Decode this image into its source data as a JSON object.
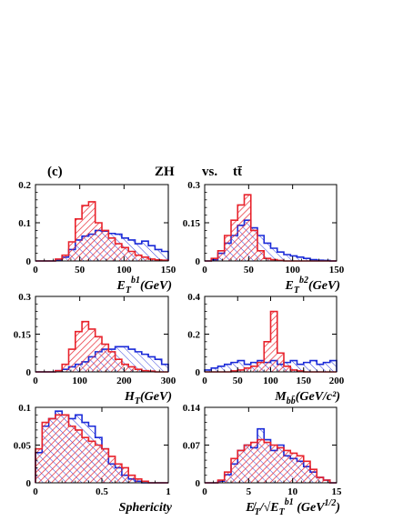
{
  "header": {
    "tag": "(c)",
    "left": "ZH",
    "vs": "vs.",
    "right": "tt̄"
  },
  "colors": {
    "zh": "#e8222b",
    "tt": "#1a2ad8",
    "frame": "#000000"
  },
  "chart_data": [
    {
      "type": "bar",
      "xlabel_main": "E",
      "xlabel_sub": "T",
      "xlabel_sup": "b1",
      "xlabel_tail": "(GeV)",
      "xlim": [
        0,
        150
      ],
      "ylim": [
        0,
        0.2
      ],
      "xticks": [
        "0",
        "50",
        "100",
        "150"
      ],
      "yticks": [
        "0",
        "0.1",
        "0.2"
      ],
      "edges": [
        0,
        7.5,
        15,
        22.5,
        30,
        37.5,
        45,
        52.5,
        60,
        67.5,
        75,
        82.5,
        90,
        97.5,
        105,
        112.5,
        120,
        127.5,
        135,
        142.5,
        150
      ],
      "series": [
        {
          "values": [
            0,
            0,
            0,
            0.005,
            0.015,
            0.05,
            0.11,
            0.145,
            0.155,
            0.1,
            0.08,
            0.06,
            0.045,
            0.035,
            0.025,
            0.015,
            0.01,
            0.005,
            0.003,
            0.002
          ]
        },
        {
          "values": [
            0,
            0,
            0,
            0.003,
            0.01,
            0.03,
            0.055,
            0.065,
            0.07,
            0.08,
            0.078,
            0.072,
            0.07,
            0.06,
            0.055,
            0.045,
            0.052,
            0.04,
            0.03,
            0.025
          ]
        }
      ]
    },
    {
      "type": "bar",
      "xlabel_main": "E",
      "xlabel_sub": "T",
      "xlabel_sup": "b2",
      "xlabel_tail": "(GeV)",
      "xlim": [
        0,
        150
      ],
      "ylim": [
        0,
        0.3
      ],
      "xticks": [
        "0",
        "50",
        "100",
        "150"
      ],
      "yticks": [
        "0",
        "0.15",
        "0.3"
      ],
      "edges": [
        0,
        7.5,
        15,
        22.5,
        30,
        37.5,
        45,
        52.5,
        60,
        67.5,
        75,
        82.5,
        90,
        97.5,
        105,
        112.5,
        120,
        127.5,
        135,
        142.5,
        150
      ],
      "series": [
        {
          "values": [
            0,
            0.01,
            0.04,
            0.1,
            0.16,
            0.22,
            0.26,
            0.12,
            0.04,
            0.01,
            0.005,
            0.002,
            0,
            0,
            0,
            0,
            0,
            0,
            0,
            0
          ]
        },
        {
          "values": [
            0,
            0.005,
            0.03,
            0.07,
            0.1,
            0.14,
            0.16,
            0.13,
            0.1,
            0.07,
            0.05,
            0.035,
            0.025,
            0.02,
            0.015,
            0.01,
            0.005,
            0.003,
            0.002,
            0
          ]
        }
      ]
    },
    {
      "type": "bar",
      "xlabel_main": "H",
      "xlabel_sub": "T",
      "xlabel_sup": "",
      "xlabel_tail": "(GeV)",
      "xlim": [
        0,
        300
      ],
      "ylim": [
        0,
        0.3
      ],
      "xticks": [
        "0",
        "100",
        "200",
        "300"
      ],
      "yticks": [
        "0",
        "0.15",
        "0.3"
      ],
      "edges": [
        0,
        15,
        30,
        45,
        60,
        75,
        90,
        105,
        120,
        135,
        150,
        165,
        180,
        195,
        210,
        225,
        240,
        255,
        270,
        285,
        300
      ],
      "series": [
        {
          "values": [
            0,
            0,
            0,
            0.005,
            0.03,
            0.09,
            0.16,
            0.2,
            0.17,
            0.14,
            0.11,
            0.08,
            0.05,
            0.03,
            0.02,
            0.01,
            0.005,
            0.003,
            0,
            0
          ]
        },
        {
          "values": [
            0,
            0,
            0,
            0.005,
            0.01,
            0.02,
            0.03,
            0.04,
            0.06,
            0.08,
            0.09,
            0.09,
            0.1,
            0.1,
            0.09,
            0.08,
            0.07,
            0.06,
            0.05,
            0.03
          ]
        }
      ]
    },
    {
      "type": "bar",
      "xlabel_main": "M",
      "xlabel_sub": "bb̄",
      "xlabel_sup": "",
      "xlabel_tail": "(GeV/c²)",
      "xlim": [
        0,
        200
      ],
      "ylim": [
        0,
        0.4
      ],
      "xticks": [
        "0",
        "50",
        "100",
        "150",
        "200"
      ],
      "yticks": [
        "0",
        "0.2",
        "0.4"
      ],
      "edges": [
        0,
        10,
        20,
        30,
        40,
        50,
        60,
        70,
        80,
        90,
        100,
        110,
        120,
        130,
        140,
        150,
        160,
        170,
        180,
        190,
        200
      ],
      "series": [
        {
          "values": [
            0,
            0,
            0,
            0,
            0.005,
            0.01,
            0.02,
            0.03,
            0.05,
            0.16,
            0.32,
            0.1,
            0.03,
            0.01,
            0.005,
            0,
            0,
            0,
            0,
            0
          ]
        },
        {
          "values": [
            0.01,
            0.02,
            0.03,
            0.04,
            0.05,
            0.06,
            0.04,
            0.05,
            0.06,
            0.05,
            0.06,
            0.04,
            0.05,
            0.06,
            0.04,
            0.05,
            0.06,
            0.04,
            0.05,
            0.06
          ]
        }
      ]
    },
    {
      "type": "bar",
      "xlabel_main": "Sphericity",
      "xlabel_sub": "",
      "xlabel_sup": "",
      "xlabel_tail": "",
      "xlim": [
        0,
        1
      ],
      "ylim": [
        0,
        0.1
      ],
      "xticks": [
        "0",
        "0.5",
        "1"
      ],
      "yticks": [
        "0",
        "0.05",
        "0.1"
      ],
      "edges": [
        0,
        0.05,
        0.1,
        0.15,
        0.2,
        0.25,
        0.3,
        0.35,
        0.4,
        0.45,
        0.5,
        0.55,
        0.6,
        0.65,
        0.7,
        0.75,
        0.8,
        0.85,
        0.9,
        0.95,
        1.0
      ],
      "series": [
        {
          "values": [
            0.045,
            0.08,
            0.085,
            0.09,
            0.09,
            0.075,
            0.07,
            0.06,
            0.055,
            0.05,
            0.045,
            0.035,
            0.025,
            0.02,
            0.01,
            0.005,
            0.002,
            0,
            0,
            0
          ]
        },
        {
          "values": [
            0.04,
            0.075,
            0.085,
            0.095,
            0.09,
            0.085,
            0.09,
            0.08,
            0.075,
            0.06,
            0.045,
            0.025,
            0.02,
            0.01,
            0.005,
            0.002,
            0,
            0,
            0,
            0
          ]
        }
      ]
    },
    {
      "type": "bar",
      "xlabel_main": "E̸",
      "xlabel_sub": "T",
      "xlabel_sup": "",
      "xlabel_tail": "/√E",
      "xlabel_sub2": "T",
      "xlabel_sup2": "b1",
      "xlabel_tail2": " (GeV",
      "xlabel_sup3": "1/2",
      "xlabel_tail3": ")",
      "xlim": [
        0,
        15
      ],
      "ylim": [
        0,
        0.14
      ],
      "xticks": [
        "0",
        "5",
        "10",
        "15"
      ],
      "yticks": [
        "0",
        "0.07",
        "0.14"
      ],
      "edges": [
        0,
        0.75,
        1.5,
        2.25,
        3,
        3.75,
        4.5,
        5.25,
        6,
        6.75,
        7.5,
        8.25,
        9,
        9.75,
        10.5,
        11.25,
        12,
        12.75,
        13.5,
        14.25,
        15
      ],
      "series": [
        {
          "values": [
            0,
            0,
            0.005,
            0.02,
            0.045,
            0.06,
            0.07,
            0.075,
            0.08,
            0.075,
            0.07,
            0.065,
            0.06,
            0.055,
            0.05,
            0.04,
            0.025,
            0.01,
            0.005,
            0
          ]
        },
        {
          "values": [
            0,
            0,
            0.003,
            0.015,
            0.035,
            0.06,
            0.07,
            0.065,
            0.1,
            0.08,
            0.06,
            0.07,
            0.05,
            0.045,
            0.04,
            0.03,
            0.02,
            0.01,
            0.005,
            0
          ]
        }
      ]
    }
  ]
}
